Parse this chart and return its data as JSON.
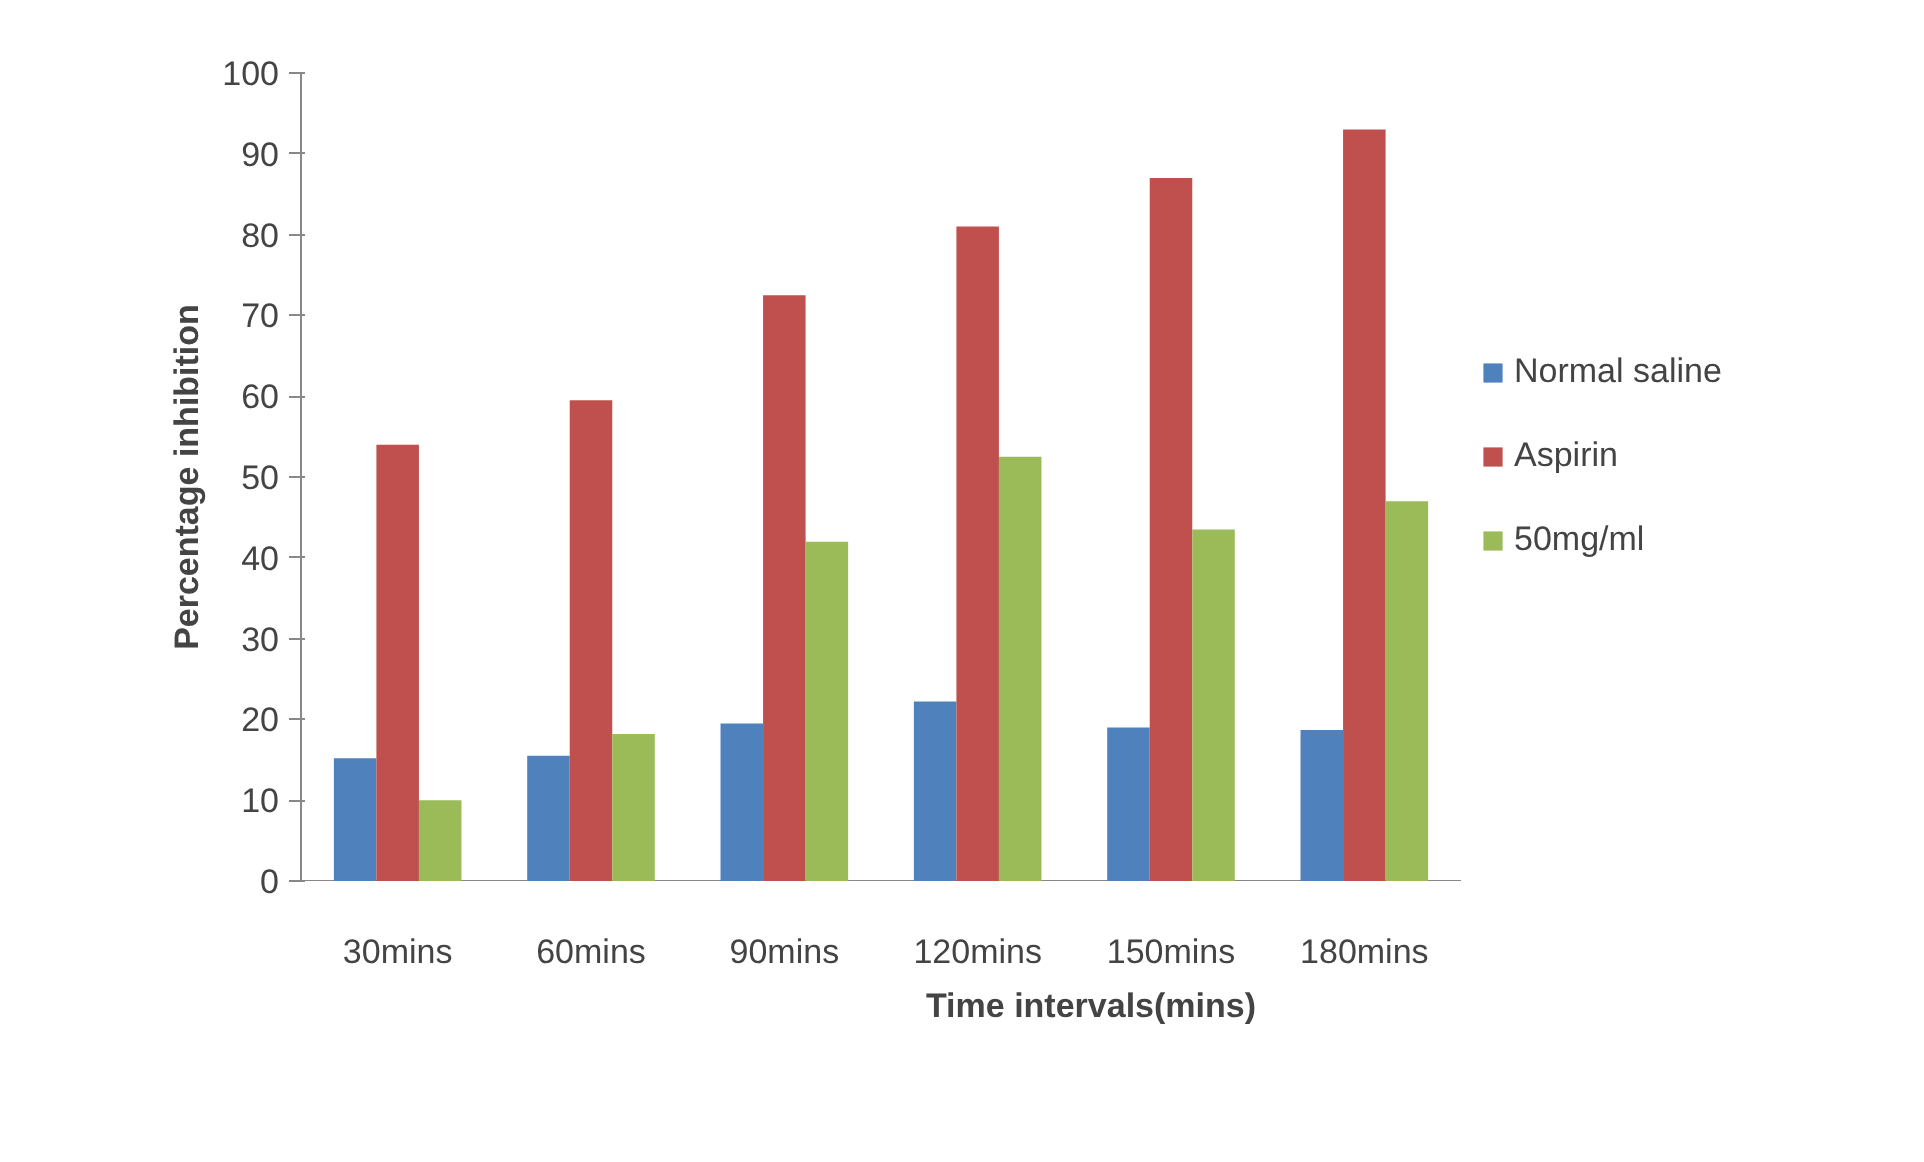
{
  "chart_data": {
    "type": "bar",
    "xlabel": "Time intervals(mins)",
    "ylabel": "Percentage inhibition",
    "categories": [
      "30mins",
      "60mins",
      "90mins",
      "120mins",
      "150mins",
      "180mins"
    ],
    "series": [
      {
        "name": "Normal saline",
        "color": "#4f81bd",
        "values": [
          15.2,
          15.5,
          19.5,
          22.2,
          19.0,
          18.7
        ]
      },
      {
        "name": "Aspirin",
        "color": "#c0504d",
        "values": [
          54.0,
          59.5,
          72.5,
          81.0,
          87.0,
          93.0
        ]
      },
      {
        "name": "50mg/ml",
        "color": "#9bbb59",
        "values": [
          10.0,
          18.2,
          42.0,
          52.5,
          43.5,
          47.0
        ]
      }
    ],
    "ylim": [
      0,
      100
    ],
    "yticks": [
      0,
      10,
      20,
      30,
      40,
      50,
      60,
      70,
      80,
      90,
      100
    ],
    "grid": false,
    "legend": "right"
  }
}
